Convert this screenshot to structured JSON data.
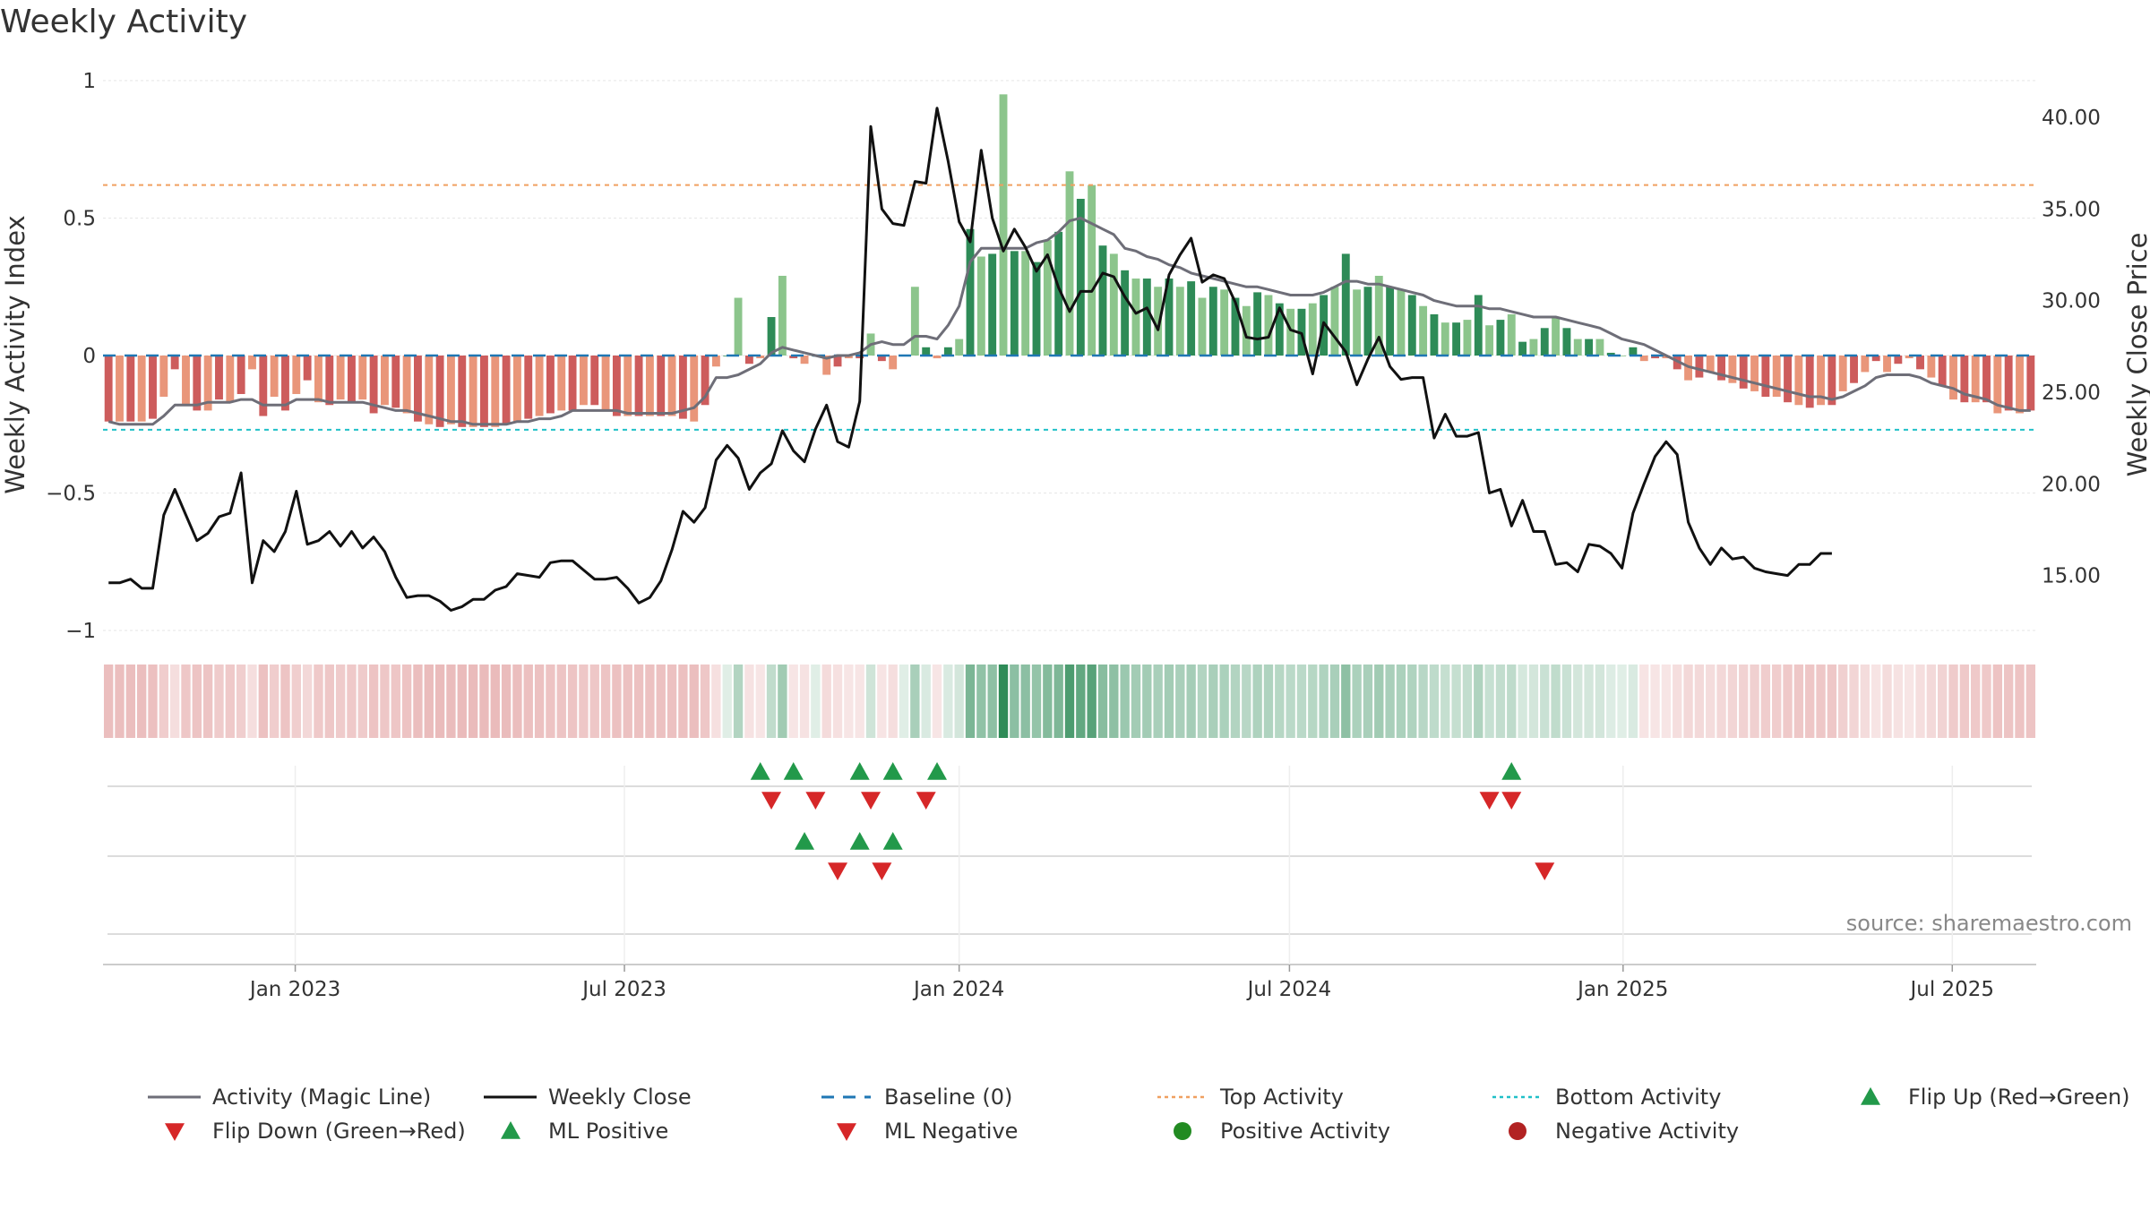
{
  "chart_data": {
    "type": "bar+line",
    "title": "Weekly Activity",
    "ylabel_left": "Weekly Activity Index",
    "ylabel_right": "Weekly Close Price",
    "ylim_left": [
      -1,
      1
    ],
    "ylim_right": [
      12.0,
      42.0
    ],
    "left_ticks": [
      {
        "v": 1,
        "label": "1"
      },
      {
        "v": 0.5,
        "label": "0.5"
      },
      {
        "v": 0,
        "label": "0"
      },
      {
        "v": -0.5,
        "label": "−0.5"
      },
      {
        "v": -1,
        "label": "−1"
      }
    ],
    "right_ticks": [
      {
        "v": 40,
        "label": "40.00"
      },
      {
        "v": 35,
        "label": "35.00"
      },
      {
        "v": 30,
        "label": "30.00"
      },
      {
        "v": 25,
        "label": "25.00"
      },
      {
        "v": 20,
        "label": "20.00"
      },
      {
        "v": 15,
        "label": "15.00"
      }
    ],
    "x_ticks": [
      "Jan 2023",
      "Jul 2023",
      "Jan 2024",
      "Jul 2024",
      "Jan 2025",
      "Jul 2025"
    ],
    "x_tick_weeks": [
      17.4,
      47.2,
      77.5,
      107.4,
      137.6,
      167.4
    ],
    "top_activity": 0.62,
    "bottom_activity": -0.27,
    "activity": [
      -0.24,
      -0.24,
      -0.24,
      -0.24,
      -0.23,
      -0.15,
      -0.05,
      -0.18,
      -0.2,
      -0.2,
      -0.16,
      -0.17,
      -0.14,
      -0.05,
      -0.22,
      -0.15,
      -0.2,
      -0.14,
      -0.09,
      -0.17,
      -0.18,
      -0.16,
      -0.17,
      -0.16,
      -0.21,
      -0.18,
      -0.19,
      -0.21,
      -0.24,
      -0.25,
      -0.26,
      -0.25,
      -0.26,
      -0.26,
      -0.26,
      -0.26,
      -0.25,
      -0.24,
      -0.23,
      -0.22,
      -0.21,
      -0.2,
      -0.2,
      -0.18,
      -0.18,
      -0.2,
      -0.22,
      -0.22,
      -0.22,
      -0.22,
      -0.22,
      -0.22,
      -0.23,
      -0.24,
      -0.18,
      -0.04,
      0.0,
      0.21,
      -0.03,
      -0.01,
      0.14,
      0.29,
      -0.01,
      -0.03,
      0.0,
      -0.07,
      -0.04,
      -0.01,
      -0.01,
      0.08,
      -0.02,
      -0.05,
      0.0,
      0.25,
      0.03,
      -0.01,
      0.03,
      0.06,
      0.46,
      0.36,
      0.37,
      0.95,
      0.38,
      0.38,
      0.34,
      0.42,
      0.45,
      0.67,
      0.57,
      0.62,
      0.4,
      0.37,
      0.31,
      0.28,
      0.28,
      0.25,
      0.28,
      0.25,
      0.27,
      0.21,
      0.25,
      0.24,
      0.21,
      0.18,
      0.23,
      0.22,
      0.19,
      0.17,
      0.17,
      0.19,
      0.22,
      0.25,
      0.37,
      0.24,
      0.25,
      0.29,
      0.25,
      0.24,
      0.22,
      0.18,
      0.15,
      0.12,
      0.12,
      0.13,
      0.22,
      0.11,
      0.13,
      0.15,
      0.05,
      0.06,
      0.1,
      0.14,
      0.1,
      0.06,
      0.06,
      0.06,
      0.01,
      0.0,
      0.03,
      -0.02,
      -0.01,
      -0.01,
      -0.05,
      -0.09,
      -0.08,
      -0.06,
      -0.09,
      -0.1,
      -0.12,
      -0.13,
      -0.15,
      -0.15,
      -0.17,
      -0.18,
      -0.19,
      -0.18,
      -0.18,
      -0.13,
      -0.1,
      -0.06,
      -0.02,
      -0.06,
      -0.03,
      -0.01,
      -0.05,
      -0.08,
      -0.11,
      -0.16,
      -0.17,
      -0.17,
      -0.17,
      -0.21,
      -0.2,
      -0.21,
      -0.2
    ],
    "magic_line": [
      -0.24,
      -0.25,
      -0.25,
      -0.25,
      -0.25,
      -0.22,
      -0.18,
      -0.18,
      -0.18,
      -0.17,
      -0.17,
      -0.17,
      -0.16,
      -0.16,
      -0.18,
      -0.18,
      -0.18,
      -0.16,
      -0.16,
      -0.16,
      -0.17,
      -0.17,
      -0.17,
      -0.17,
      -0.18,
      -0.19,
      -0.2,
      -0.2,
      -0.21,
      -0.22,
      -0.23,
      -0.24,
      -0.24,
      -0.25,
      -0.25,
      -0.25,
      -0.25,
      -0.24,
      -0.24,
      -0.23,
      -0.23,
      -0.22,
      -0.2,
      -0.2,
      -0.2,
      -0.2,
      -0.2,
      -0.21,
      -0.21,
      -0.21,
      -0.21,
      -0.21,
      -0.2,
      -0.19,
      -0.15,
      -0.08,
      -0.08,
      -0.07,
      -0.05,
      -0.03,
      0.01,
      0.03,
      0.02,
      0.01,
      0.0,
      -0.01,
      0.0,
      0.0,
      0.01,
      0.04,
      0.05,
      0.04,
      0.04,
      0.07,
      0.07,
      0.06,
      0.11,
      0.18,
      0.34,
      0.39,
      0.39,
      0.39,
      0.39,
      0.39,
      0.41,
      0.42,
      0.45,
      0.49,
      0.5,
      0.48,
      0.46,
      0.44,
      0.39,
      0.38,
      0.36,
      0.35,
      0.33,
      0.32,
      0.3,
      0.29,
      0.28,
      0.27,
      0.26,
      0.25,
      0.25,
      0.24,
      0.23,
      0.22,
      0.22,
      0.22,
      0.23,
      0.25,
      0.27,
      0.27,
      0.26,
      0.26,
      0.25,
      0.24,
      0.23,
      0.22,
      0.2,
      0.19,
      0.18,
      0.18,
      0.18,
      0.17,
      0.17,
      0.16,
      0.15,
      0.14,
      0.14,
      0.14,
      0.13,
      0.12,
      0.11,
      0.1,
      0.08,
      0.06,
      0.05,
      0.04,
      0.02,
      0.0,
      -0.02,
      -0.04,
      -0.05,
      -0.06,
      -0.07,
      -0.08,
      -0.09,
      -0.1,
      -0.11,
      -0.12,
      -0.13,
      -0.14,
      -0.15,
      -0.15,
      -0.16,
      -0.15,
      -0.13,
      -0.11,
      -0.08,
      -0.07,
      -0.07,
      -0.07,
      -0.08,
      -0.1,
      -0.11,
      -0.12,
      -0.14,
      -0.15,
      -0.16,
      -0.18,
      -0.19,
      -0.2,
      -0.2
    ],
    "weekly_close": [
      14.6,
      14.6,
      14.8,
      14.3,
      14.3,
      18.3,
      19.7,
      18.3,
      16.9,
      17.3,
      18.2,
      18.4,
      20.6,
      14.6,
      16.9,
      16.3,
      17.4,
      19.6,
      16.7,
      16.9,
      17.4,
      16.6,
      17.4,
      16.5,
      17.1,
      16.3,
      14.9,
      13.8,
      13.9,
      13.9,
      13.6,
      13.1,
      13.3,
      13.7,
      13.7,
      14.2,
      14.4,
      15.1,
      15.0,
      14.9,
      15.7,
      15.8,
      15.8,
      15.3,
      14.8,
      14.8,
      14.9,
      14.3,
      13.5,
      13.8,
      14.7,
      16.4,
      18.5,
      17.9,
      18.7,
      21.3,
      22.1,
      21.4,
      19.7,
      20.6,
      21.1,
      22.9,
      21.8,
      21.2,
      23.0,
      24.3,
      22.3,
      22.0,
      24.5,
      39.5,
      35.0,
      34.2,
      34.1,
      36.5,
      36.4,
      40.5,
      37.6,
      34.3,
      33.2,
      38.2,
      34.5,
      32.7,
      33.9,
      32.9,
      31.6,
      32.5,
      30.7,
      29.4,
      30.5,
      30.5,
      31.5,
      31.3,
      30.2,
      29.3,
      29.6,
      28.4,
      31.4,
      32.5,
      33.4,
      31.0,
      31.4,
      31.2,
      29.9,
      28.0,
      27.9,
      28.0,
      29.6,
      28.4,
      28.2,
      26.0,
      28.8,
      28.0,
      27.2,
      25.4,
      26.8,
      28.0,
      26.4,
      25.7,
      25.8,
      25.8,
      22.5,
      23.8,
      22.6,
      22.6,
      22.8,
      19.5,
      19.7,
      17.7,
      19.1,
      17.4,
      17.4,
      15.6,
      15.7,
      15.2,
      16.7,
      16.6,
      16.2,
      15.4,
      18.4,
      20.0,
      21.5,
      22.3,
      21.6,
      17.9,
      16.5,
      15.6,
      16.5,
      15.9,
      16.0,
      15.4,
      15.2,
      15.1,
      15.0,
      15.6,
      15.6,
      16.2,
      16.2
    ],
    "flip_up": [
      59,
      62,
      68,
      71,
      75,
      127
    ],
    "flip_down": [
      60,
      64,
      69,
      74,
      125,
      127
    ],
    "ml_positive": [
      63,
      68,
      71
    ],
    "ml_negative": [
      66,
      70,
      130
    ],
    "positive_activity": [],
    "negative_activity": [],
    "source": "source: sharemaestro.com",
    "legend": [
      {
        "label": "Activity (Magic Line)",
        "kind": "line",
        "color": "#6e6e78"
      },
      {
        "label": "Weekly Close",
        "kind": "line",
        "color": "#111111"
      },
      {
        "label": "Baseline (0)",
        "kind": "dash",
        "color": "#1f77b4"
      },
      {
        "label": "Top Activity",
        "kind": "dot",
        "color": "#f0a060"
      },
      {
        "label": "Bottom Activity",
        "kind": "dot",
        "color": "#20c0c8"
      },
      {
        "label": "Flip Up (Red→Green)",
        "kind": "tri-up",
        "color": "#22994a"
      },
      {
        "label": "Flip Down (Green→Red)",
        "kind": "tri-down",
        "color": "#d62728"
      },
      {
        "label": "ML Positive",
        "kind": "tri-up",
        "color": "#22994a"
      },
      {
        "label": "ML Negative",
        "kind": "tri-down",
        "color": "#d62728"
      },
      {
        "label": "Positive Activity",
        "kind": "circle",
        "color": "#228b22"
      },
      {
        "label": "Negative Activity",
        "kind": "circle",
        "color": "#b22222"
      }
    ],
    "colors": {
      "green_dark": "#2e8b57",
      "green_light": "#8cc58c",
      "red_dark": "#cd5c5c",
      "red_light": "#e9967a",
      "heat_green": "#2e8b57",
      "heat_red": "#cd5c5c",
      "marker_up": "#22994a",
      "marker_down": "#d62728"
    }
  }
}
